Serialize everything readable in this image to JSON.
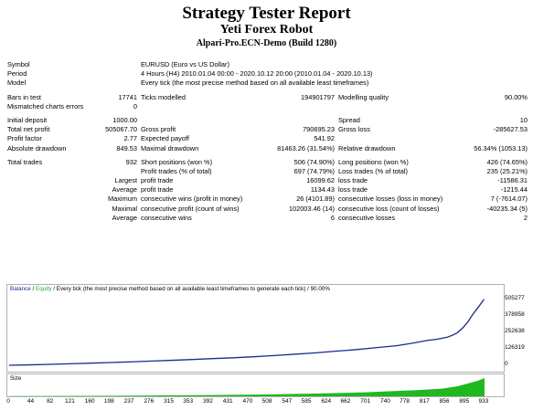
{
  "header": {
    "title": "Strategy Tester Report",
    "subtitle": "Yeti Forex Robot",
    "server": "Alpari-Pro.ECN-Demo (Build 1280)"
  },
  "report": {
    "symbol_label": "Symbol",
    "symbol_value": "EURUSD (Euro vs US Dollar)",
    "period_label": "Period",
    "period_value": "4 Hours (H4) 2010.01.04 00:00 - 2020.10.12 20:00 (2010.01.04 - 2020.10.13)",
    "model_label": "Model",
    "model_value": "Every tick (the most precise method based on all available least timeframes)",
    "bars_label": "Bars in test",
    "bars_value": "17741",
    "ticks_label": "Ticks modelled",
    "ticks_value": "194901797",
    "quality_label": "Modelling quality",
    "quality_value": "90.00%",
    "mismatch_label": "Mismatched charts errors",
    "mismatch_value": "0",
    "deposit_label": "Initial deposit",
    "deposit_value": "1000.00",
    "spread_label": "Spread",
    "spread_value": "10",
    "netprofit_label": "Total net profit",
    "netprofit_value": "505067.70",
    "grossprofit_label": "Gross profit",
    "grossprofit_value": "790695.23",
    "grossloss_label": "Gross loss",
    "grossloss_value": "-285627.53",
    "pf_label": "Profit factor",
    "pf_value": "2.77",
    "payoff_label": "Expected payoff",
    "payoff_value": "541.92",
    "absdd_label": "Absolute drawdown",
    "absdd_value": "849.53",
    "maxdd_label": "Maximal drawdown",
    "maxdd_value": "81463.26 (31.54%)",
    "reldd_label": "Relative drawdown",
    "reldd_value": "56.34% (1053.13)",
    "trades_label": "Total trades",
    "trades_value": "932",
    "short_label": "Short positions (won %)",
    "short_value": "506 (74.90%)",
    "long_label": "Long positions (won %)",
    "long_value": "426 (74.65%)",
    "ptrades_label": "Profit trades (% of total)",
    "ptrades_value": "697 (74.79%)",
    "ltrades_label": "Loss trades (% of total)",
    "ltrades_value": "235 (25.21%)",
    "largest_label": "Largest",
    "lprofit_label": "profit trade",
    "lprofit_value": "16099.62",
    "lloss_label": "loss trade",
    "lloss_value": "-11586.31",
    "average_label": "Average",
    "aprofit_label": "profit trade",
    "aprofit_value": "1134.43",
    "aloss_label": "loss trade",
    "aloss_value": "-1215.44",
    "maximum_label": "Maximum",
    "mcw_label": "consecutive wins (profit in money)",
    "mcw_value": "26 (4101.89)",
    "mcl_label": "consecutive losses (loss in money)",
    "mcl_value": "7 (-7614.07)",
    "maximal_label": "Maximal",
    "mcp_label": "consecutive profit (count of wins)",
    "mcp_value": "102003.46 (14)",
    "mcloss_label": "consecutive loss (count of losses)",
    "mcloss_value": "-40235.34 (5)",
    "average2_label": "Average",
    "acw_label": "consecutive wins",
    "acw_value": "6",
    "acl_label": "consecutive losses",
    "acl_value": "2"
  },
  "chart_data": {
    "type": "line",
    "legend": {
      "balance": "Balance",
      "sep1": " / ",
      "equity": "Equity",
      "rest": " / Every tick (the most precise method based on all available least timeframes to generate each tick) / 90.00%"
    },
    "size_label": "Size",
    "colors": {
      "balance": "#1c2a8c",
      "equity": "#2ea82e",
      "size": "#1fb81f"
    },
    "y_ticks": [
      "505277",
      "378958",
      "252638",
      "126319",
      "0"
    ],
    "y_tick_values": [
      505277,
      378958,
      252638,
      126319,
      0
    ],
    "ylim": [
      -20000,
      545000
    ],
    "x_ticks": [
      "0",
      "44",
      "82",
      "121",
      "160",
      "198",
      "237",
      "276",
      "315",
      "353",
      "392",
      "431",
      "470",
      "508",
      "547",
      "585",
      "624",
      "662",
      "701",
      "740",
      "778",
      "817",
      "856",
      "895",
      "933"
    ],
    "xlim": [
      0,
      960
    ],
    "series": [
      {
        "name": "Balance",
        "x": [
          0,
          40,
          80,
          120,
          160,
          200,
          240,
          280,
          320,
          360,
          400,
          440,
          480,
          520,
          560,
          600,
          640,
          680,
          720,
          760,
          780,
          800,
          820,
          840,
          860,
          870,
          880,
          890,
          900,
          910,
          920,
          932
        ],
        "values": [
          1000,
          4000,
          8000,
          12000,
          17000,
          22000,
          27000,
          33000,
          39000,
          45000,
          52000,
          58000,
          66000,
          75000,
          85000,
          95000,
          108000,
          120000,
          135000,
          150000,
          162000,
          175000,
          190000,
          200000,
          215000,
          230000,
          250000,
          285000,
          330000,
          390000,
          440000,
          505067
        ]
      }
    ],
    "size_series": {
      "x": [
        0,
        100,
        200,
        300,
        400,
        500,
        560,
        600,
        650,
        700,
        750,
        800,
        850,
        880,
        900,
        920,
        933
      ],
      "values": [
        0.01,
        0.02,
        0.03,
        0.05,
        0.07,
        0.1,
        0.13,
        0.15,
        0.18,
        0.22,
        0.28,
        0.34,
        0.42,
        0.55,
        0.7,
        0.85,
        1.0
      ]
    }
  }
}
